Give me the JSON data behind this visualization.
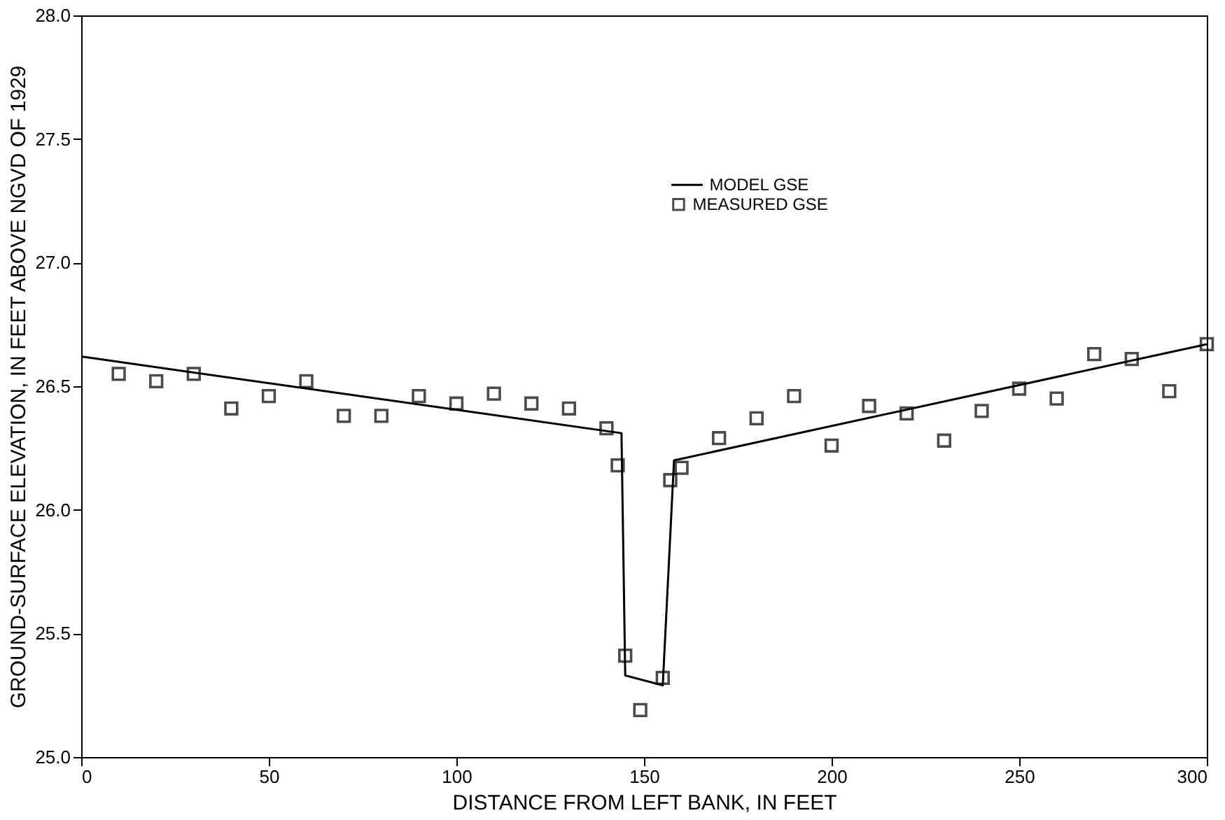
{
  "chart_data": {
    "type": "scatter",
    "xlabel": "DISTANCE FROM LEFT BANK, IN FEET",
    "ylabel": "GROUND-SURFACE ELEVATION, IN FEET ABOVE NGVD OF 1929",
    "xlim": [
      0,
      300
    ],
    "xticks": [
      0,
      50,
      100,
      150,
      200,
      250,
      300
    ],
    "ylim": [
      25.0,
      28.0
    ],
    "yticks": [
      {
        "value": 25.0,
        "label": "25.0"
      },
      {
        "value": 25.5,
        "label": "25.5"
      },
      {
        "value": 26.0,
        "label": "26.0"
      },
      {
        "value": 26.5,
        "label": "26.5"
      },
      {
        "value": 27.0,
        "label": "27.0"
      },
      {
        "value": 27.5,
        "label": "27.5"
      },
      {
        "value": 28.0,
        "label": "28.0"
      }
    ],
    "grid": false,
    "legend": "top right",
    "series": [
      {
        "name": "MODEL GSE",
        "type": "line",
        "color": "#000000",
        "marker": "none",
        "line_style": "solid",
        "x": [
          0,
          144,
          145,
          155,
          158,
          300
        ],
        "values": [
          26.62,
          26.31,
          25.33,
          25.29,
          26.2,
          26.67
        ]
      },
      {
        "name": "MEASURED GSE",
        "type": "scatter",
        "color": "#000000",
        "marker": "square",
        "x": [
          10,
          20,
          30,
          40,
          50,
          60,
          70,
          80,
          90,
          100,
          110,
          120,
          130,
          140,
          143,
          145,
          149,
          155,
          157,
          160,
          170,
          180,
          190,
          200,
          210,
          220,
          230,
          240,
          250,
          260,
          270,
          280,
          290,
          300
        ],
        "values": [
          26.55,
          26.52,
          26.55,
          26.41,
          26.46,
          26.52,
          26.38,
          26.38,
          26.46,
          26.43,
          26.47,
          26.43,
          26.41,
          26.33,
          26.18,
          25.41,
          25.19,
          25.32,
          26.12,
          26.17,
          26.29,
          26.37,
          26.46,
          26.26,
          26.42,
          26.39,
          26.28,
          26.4,
          26.49,
          26.45,
          26.63,
          26.61,
          26.48,
          26.67
        ]
      }
    ]
  }
}
